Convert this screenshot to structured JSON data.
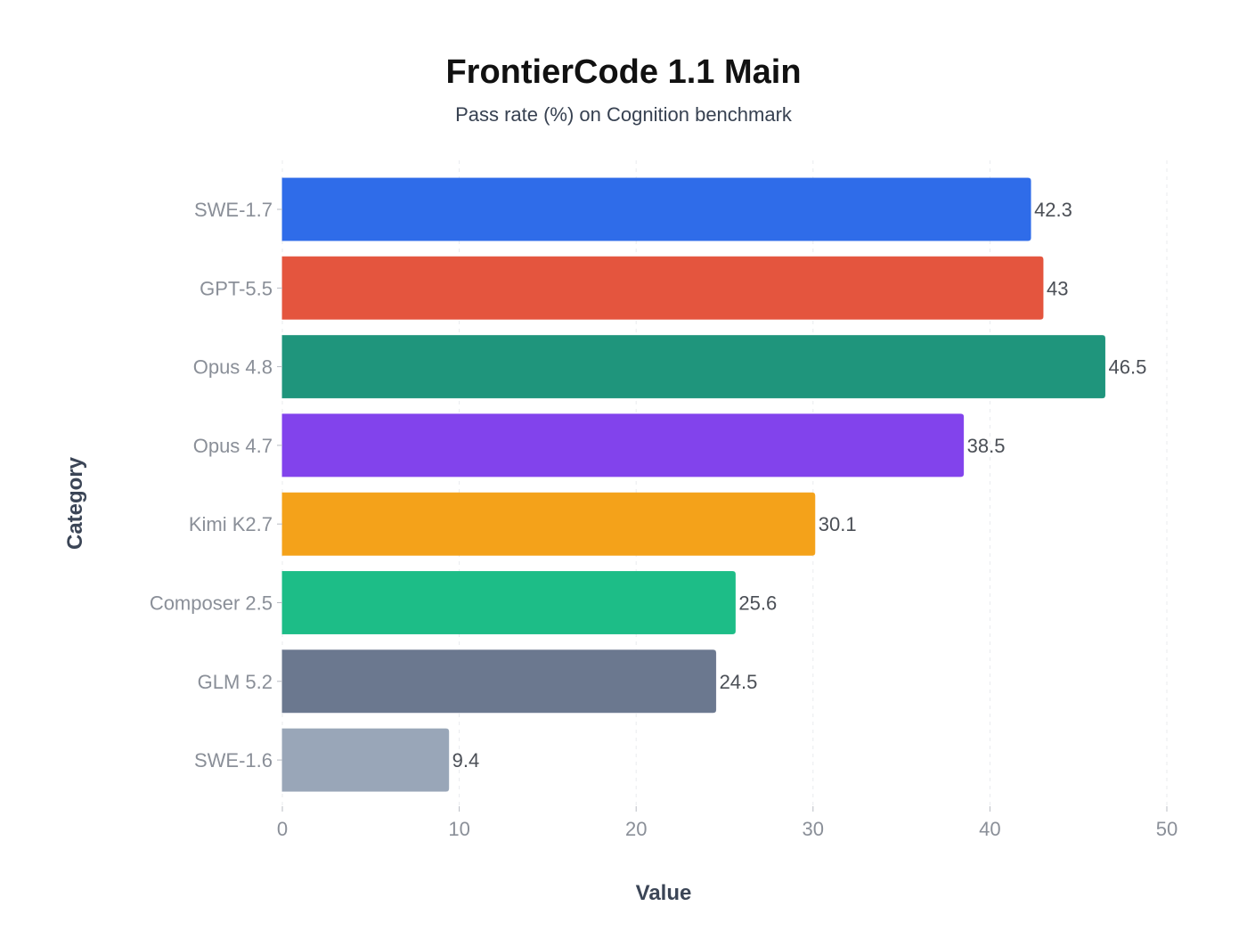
{
  "chart_data": {
    "type": "bar",
    "orientation": "horizontal",
    "title": "FrontierCode 1.1 Main",
    "subtitle": "Pass rate (%) on Cognition benchmark",
    "xlabel": "Value",
    "ylabel": "Category",
    "xlim": [
      0,
      50
    ],
    "x_ticks": [
      "0",
      "10",
      "20",
      "30",
      "40",
      "50"
    ],
    "grid": true,
    "categories": [
      "SWE-1.7",
      "GPT-5.5",
      "Opus 4.8",
      "Opus 4.7",
      "Kimi K2.7",
      "Composer 2.5",
      "GLM 5.2",
      "SWE-1.6"
    ],
    "values": [
      42.3,
      43,
      46.5,
      38.5,
      30.1,
      25.6,
      24.5,
      9.4
    ],
    "value_labels": [
      "42.3",
      "43",
      "46.5",
      "38.5",
      "30.1",
      "25.6",
      "24.5",
      "9.4"
    ],
    "colors": [
      "#2f6ce9",
      "#e4553e",
      "#1f957c",
      "#8243ec",
      "#f4a21a",
      "#1dbd87",
      "#6b788f",
      "#99a6b8"
    ]
  }
}
